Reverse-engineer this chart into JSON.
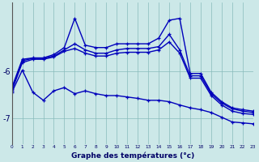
{
  "xlabel": "Graphe des températures (°c)",
  "bg_color": "#cce8e8",
  "line_color": "#0000bb",
  "grid_color": "#88bbbb",
  "x_ticks": [
    0,
    1,
    2,
    3,
    4,
    5,
    6,
    7,
    8,
    9,
    10,
    11,
    12,
    13,
    14,
    15,
    16,
    17,
    18,
    19,
    20,
    21,
    22,
    23
  ],
  "y_ticks": [
    -7,
    -6
  ],
  "ylim": [
    -7.55,
    -4.55
  ],
  "xlim": [
    0,
    23
  ],
  "series": [
    {
      "x": [
        0,
        1,
        2,
        3,
        4,
        5,
        6,
        7,
        8,
        9,
        10,
        11,
        12,
        13,
        14,
        15,
        16,
        17,
        18,
        19,
        20,
        21,
        22,
        23
      ],
      "y": [
        -6.35,
        -5.75,
        -5.72,
        -5.72,
        -5.65,
        -5.5,
        -4.88,
        -5.45,
        -5.5,
        -5.5,
        -5.42,
        -5.42,
        -5.42,
        -5.42,
        -5.3,
        -4.92,
        -4.88,
        -6.05,
        -6.05,
        -6.45,
        -6.65,
        -6.78,
        -6.82,
        -6.85
      ]
    },
    {
      "x": [
        0,
        1,
        2,
        3,
        4,
        5,
        6,
        7,
        8,
        9,
        10,
        11,
        12,
        13,
        14,
        15,
        16,
        17,
        18,
        19,
        20,
        21,
        22,
        23
      ],
      "y": [
        -6.38,
        -5.78,
        -5.73,
        -5.73,
        -5.68,
        -5.55,
        -5.42,
        -5.55,
        -5.62,
        -5.62,
        -5.55,
        -5.52,
        -5.52,
        -5.52,
        -5.48,
        -5.22,
        -5.55,
        -6.1,
        -6.1,
        -6.48,
        -6.68,
        -6.8,
        -6.85,
        -6.88
      ]
    },
    {
      "x": [
        0,
        1,
        2,
        3,
        4,
        5,
        6,
        7,
        8,
        9,
        10,
        11,
        12,
        13,
        14,
        15,
        16,
        17,
        18,
        19,
        20,
        21,
        22,
        23
      ],
      "y": [
        -6.42,
        -5.82,
        -5.75,
        -5.75,
        -5.7,
        -5.58,
        -5.52,
        -5.62,
        -5.68,
        -5.68,
        -5.62,
        -5.6,
        -5.6,
        -5.6,
        -5.55,
        -5.38,
        -5.62,
        -6.15,
        -6.15,
        -6.52,
        -6.72,
        -6.85,
        -6.9,
        -6.92
      ]
    },
    {
      "x": [
        0,
        1,
        2,
        3,
        4,
        5,
        6,
        7,
        8,
        9,
        10,
        11,
        12,
        13,
        14,
        15,
        16,
        17,
        18,
        19,
        20,
        21,
        22,
        23
      ],
      "y": [
        -6.45,
        -5.98,
        -6.45,
        -6.62,
        -6.42,
        -6.35,
        -6.48,
        -6.42,
        -6.48,
        -6.52,
        -6.52,
        -6.55,
        -6.58,
        -6.62,
        -6.62,
        -6.65,
        -6.72,
        -6.78,
        -6.82,
        -6.88,
        -6.98,
        -7.08,
        -7.1,
        -7.12
      ]
    }
  ]
}
